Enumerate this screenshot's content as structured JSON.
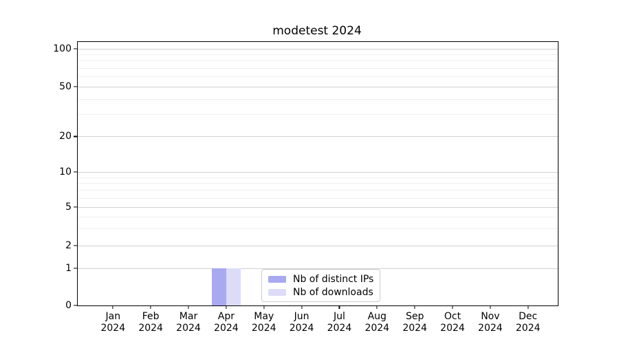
{
  "title": "modetest 2024",
  "chart_data": {
    "type": "bar",
    "title": "modetest 2024",
    "categories": [
      "Jan 2024",
      "Feb 2024",
      "Mar 2024",
      "Apr 2024",
      "May 2024",
      "Jun 2024",
      "Jul 2024",
      "Aug 2024",
      "Sep 2024",
      "Oct 2024",
      "Nov 2024",
      "Dec 2024"
    ],
    "series": [
      {
        "name": "Nb of distinct IPs",
        "color": "#a9a9f2",
        "values": [
          0,
          0,
          0,
          1,
          0,
          0,
          0,
          0,
          0,
          0,
          0,
          0
        ]
      },
      {
        "name": "Nb of downloads",
        "color": "#dcdcf9",
        "values": [
          0,
          0,
          0,
          1,
          0,
          0,
          0,
          0,
          0,
          0,
          0,
          0
        ]
      }
    ],
    "yscale": "symlog",
    "ylim": [
      0,
      110
    ],
    "yticks": [
      100,
      50,
      20,
      10,
      5,
      2,
      1,
      0
    ],
    "xlabel": "",
    "ylabel": "",
    "grid": true,
    "legend_position": "inside-bottom-center"
  },
  "colors": {
    "axis": "#000000",
    "grid_major": "#cfcfcf",
    "grid_minor": "#efefef",
    "background": "#ffffff",
    "legend_border": "#cccccc"
  }
}
